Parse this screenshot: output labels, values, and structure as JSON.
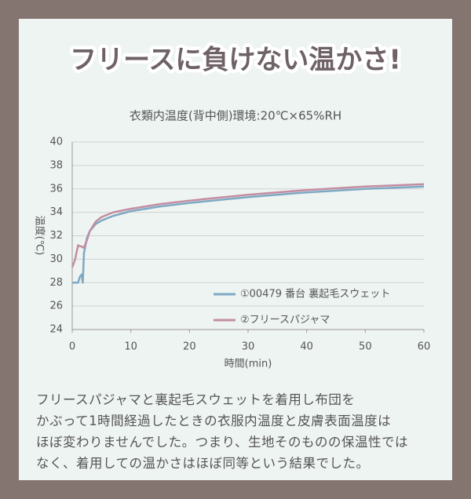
{
  "header_title": "フリースに負けない温かさ!",
  "chart_data": {
    "type": "line",
    "title": "衣類内温度(背中側)環境:20℃×65%RH",
    "x_label": "時間(min)",
    "y_label": "温度(℃)",
    "x": [
      0,
      0.5,
      1,
      1.3,
      1.6,
      1.8,
      2,
      2.5,
      3,
      4,
      5,
      7,
      10,
      15,
      20,
      30,
      40,
      50,
      60
    ],
    "series": [
      {
        "name": "①00479 番台 裏起毛スウェット",
        "color": "#7ea9c4",
        "values": [
          28,
          28,
          28,
          28.5,
          28.7,
          28,
          30.5,
          31.8,
          32.4,
          33,
          33.3,
          33.7,
          34.1,
          34.5,
          34.8,
          35.3,
          35.7,
          36,
          36.2
        ]
      },
      {
        "name": "②フリースパジャマ",
        "color": "#c48da3",
        "values": [
          29.3,
          30,
          31.2,
          31.1,
          31.1,
          31,
          31,
          31.6,
          32.4,
          33.2,
          33.6,
          34,
          34.3,
          34.7,
          35,
          35.5,
          35.9,
          36.2,
          36.4
        ]
      }
    ],
    "xlim": [
      0,
      60
    ],
    "xticks": [
      0,
      10,
      20,
      30,
      40,
      50,
      60
    ],
    "ylim": [
      24,
      40
    ],
    "yticks": [
      24,
      26,
      28,
      30,
      32,
      34,
      36,
      38,
      40
    ],
    "grid": true,
    "legend": "lower right"
  },
  "description": [
    "フリースパジャマと裏起毛スウェットを着用し布団を",
    "かぶって1時間経過したときの衣服内温度と皮膚表面温度は",
    "ほぼ変わりませんでした。つまり、生地そのものの保温性では",
    "なく、着用しての温かさはほぼ同等という結果でした。"
  ]
}
